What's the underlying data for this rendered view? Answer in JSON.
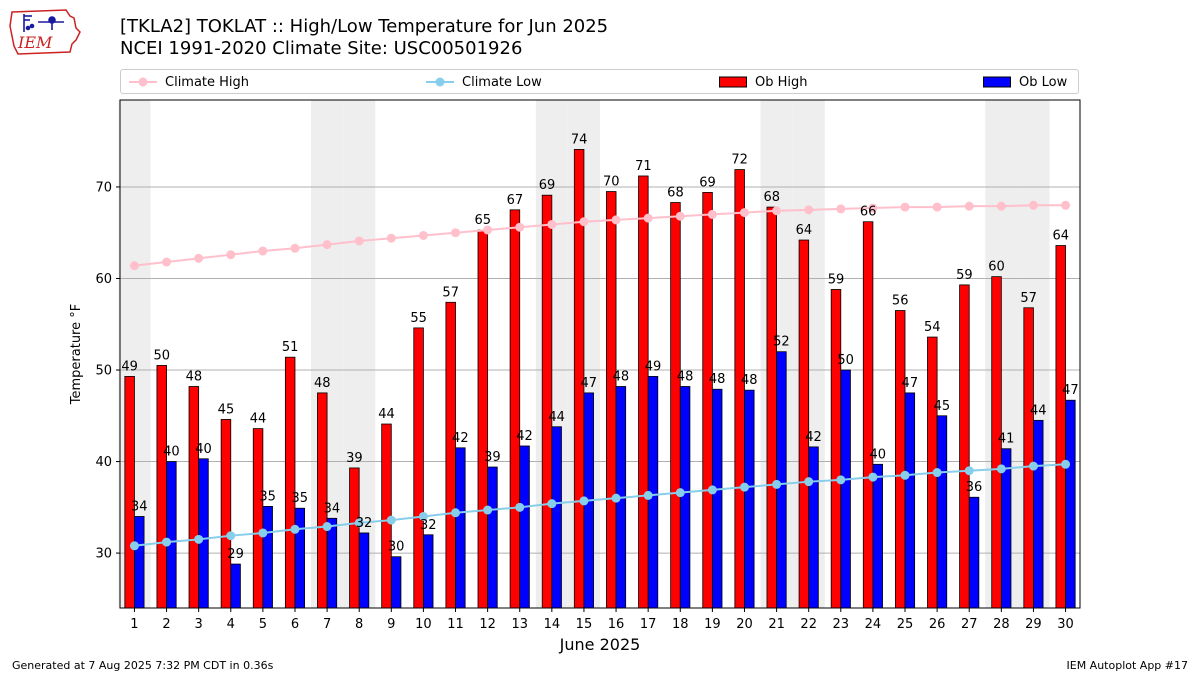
{
  "header": {
    "title_line1": "[TKLA2] TOKLAT :: High/Low Temperature for Jun 2025",
    "title_line2": "NCEI 1991-2020 Climate Site: USC00501926"
  },
  "logo": {
    "text": "IEM"
  },
  "legend": {
    "climate_high": "Climate High",
    "climate_low": "Climate Low",
    "ob_high": "Ob High",
    "ob_low": "Ob Low"
  },
  "footer": {
    "generated": "Generated at 7 Aug 2025 7:32 PM CDT in 0.36s",
    "app": "IEM Autoplot App #17"
  },
  "colors": {
    "ob_high": "#ff0000",
    "ob_low": "#0000ff",
    "climate_high": "#ffc0cb",
    "climate_low": "#87ceeb",
    "weekend_band": "#eeeeee",
    "grid": "#b0b0b0"
  },
  "chart_data": {
    "type": "bar",
    "xlabel": "June 2025",
    "ylabel": "Temperature °F",
    "ylim": [
      24,
      79.5
    ],
    "yticks": [
      30,
      40,
      50,
      60,
      70
    ],
    "x": [
      1,
      2,
      3,
      4,
      5,
      6,
      7,
      8,
      9,
      10,
      11,
      12,
      13,
      14,
      15,
      16,
      17,
      18,
      19,
      20,
      21,
      22,
      23,
      24,
      25,
      26,
      27,
      28,
      29,
      30
    ],
    "weekend_days": [
      1,
      7,
      8,
      14,
      15,
      21,
      22,
      28,
      29
    ],
    "grid": true,
    "legend_position": "top",
    "series": [
      {
        "name": "Ob High",
        "kind": "bar",
        "values": [
          49.3,
          50.5,
          48.2,
          44.6,
          43.6,
          51.4,
          47.5,
          39.3,
          44.1,
          54.6,
          57.4,
          65.3,
          67.5,
          69.1,
          74.1,
          69.5,
          71.2,
          68.3,
          69.4,
          71.9,
          67.8,
          64.2,
          58.8,
          66.2,
          56.5,
          53.6,
          59.3,
          60.2,
          56.8,
          63.6
        ]
      },
      {
        "name": "Ob Low",
        "kind": "bar",
        "values": [
          34.0,
          40.0,
          40.3,
          28.8,
          35.1,
          34.9,
          33.8,
          32.2,
          29.6,
          32.0,
          41.5,
          39.4,
          41.7,
          43.8,
          47.5,
          48.2,
          49.3,
          48.2,
          47.9,
          47.8,
          52.0,
          41.6,
          50.0,
          39.7,
          47.5,
          45.0,
          36.1,
          41.4,
          44.5,
          46.7
        ]
      },
      {
        "name": "Climate High",
        "kind": "line",
        "values": [
          61.4,
          61.8,
          62.2,
          62.6,
          63.0,
          63.3,
          63.7,
          64.1,
          64.4,
          64.7,
          65.0,
          65.3,
          65.6,
          65.9,
          66.2,
          66.4,
          66.6,
          66.8,
          67.0,
          67.2,
          67.4,
          67.5,
          67.6,
          67.7,
          67.8,
          67.8,
          67.9,
          67.9,
          68.0,
          68.0
        ]
      },
      {
        "name": "Climate Low",
        "kind": "line",
        "values": [
          30.8,
          31.2,
          31.5,
          31.9,
          32.2,
          32.6,
          32.9,
          33.3,
          33.6,
          34.0,
          34.4,
          34.7,
          35.0,
          35.4,
          35.7,
          36.0,
          36.3,
          36.6,
          36.9,
          37.2,
          37.5,
          37.8,
          38.0,
          38.3,
          38.5,
          38.8,
          39.0,
          39.2,
          39.5,
          39.7
        ]
      }
    ],
    "bar_labels_high": [
      "49",
      "50",
      "48",
      "45",
      "44",
      "51",
      "48",
      "39",
      "44",
      "55",
      "57",
      "65",
      "67",
      "69",
      "74",
      "70",
      "71",
      "68",
      "69",
      "72",
      "68",
      "64",
      "59",
      "66",
      "56",
      "54",
      "59",
      "60",
      "57",
      "64"
    ],
    "bar_labels_low": [
      "34",
      "40",
      "40",
      "29",
      "35",
      "35",
      "34",
      "32",
      "30",
      "32",
      "42",
      "39",
      "42",
      "44",
      "47",
      "48",
      "49",
      "48",
      "48",
      "48",
      "52",
      "42",
      "50",
      "40",
      "47",
      "45",
      "36",
      "41",
      "44",
      "47"
    ]
  }
}
